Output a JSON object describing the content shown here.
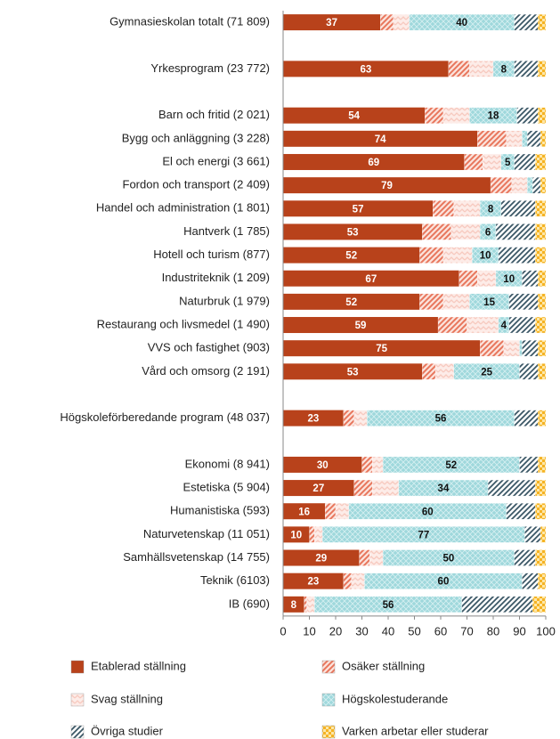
{
  "chart_data": {
    "type": "stacked-barh",
    "categories": [
      "Gymnasieskolan totalt (71 809)",
      null,
      "Yrkesprogram (23 772)",
      null,
      "Barn och fritid (2 021)",
      "Bygg och anläggning (3 228)",
      "El och energi (3 661)",
      "Fordon och transport (2 409)",
      "Handel och administration (1 801)",
      "Hantverk (1 785)",
      "Hotell och turism (877)",
      "Industriteknik (1 209)",
      "Naturbruk (1 979)",
      "Restaurang och livsmedel (1 490)",
      "VVS och fastighet (903)",
      "Vård och omsorg (2 191)",
      null,
      "Högskoleförberedande program (48 037)",
      null,
      "Ekonomi (8 941)",
      "Estetiska (5 904)",
      "Humanistiska (593)",
      "Naturvetenskap (11 051)",
      "Samhällsvetenskap (14 755)",
      "Teknik (6103)",
      "IB (690)"
    ],
    "series": [
      {
        "name": "Etablerad ställning",
        "color": "#b8421b",
        "pattern": "solid",
        "values": [
          37,
          null,
          63,
          null,
          54,
          74,
          69,
          79,
          57,
          53,
          52,
          67,
          52,
          59,
          75,
          53,
          null,
          23,
          null,
          30,
          27,
          16,
          10,
          29,
          23,
          8
        ],
        "value_labels": [
          "37",
          null,
          "63",
          null,
          "54",
          "74",
          "69",
          "79",
          "57",
          "53",
          "52",
          "67",
          "52",
          "59",
          "75",
          "53",
          null,
          "23",
          null,
          "30",
          "27",
          "16",
          "10",
          "29",
          "23",
          "8"
        ]
      },
      {
        "name": "Osäker ställning",
        "color": "#e8765c",
        "pattern": "hatch",
        "values": [
          5,
          null,
          8,
          null,
          7,
          11,
          7,
          8,
          8,
          11,
          9,
          7,
          9,
          11,
          9,
          5,
          null,
          4,
          null,
          4,
          7,
          4,
          2,
          4,
          3,
          1
        ]
      },
      {
        "name": "Svag ställning",
        "color": "#f7c9bf",
        "pattern": "zigzag",
        "values": [
          6,
          null,
          9,
          null,
          10,
          6,
          7,
          6,
          10,
          11,
          11,
          7,
          10,
          12,
          6,
          7,
          null,
          5,
          null,
          4,
          10,
          5,
          3,
          5,
          5,
          3
        ]
      },
      {
        "name": "Högskolestuderande",
        "color": "#9fd8dc",
        "pattern": "dots",
        "values": [
          40,
          null,
          8,
          null,
          18,
          2,
          5,
          2,
          8,
          6,
          10,
          10,
          15,
          4,
          1,
          25,
          null,
          56,
          null,
          52,
          34,
          60,
          77,
          50,
          60,
          56
        ],
        "value_labels": [
          "40",
          null,
          "8",
          null,
          "18",
          null,
          "5",
          null,
          "8",
          "6",
          "10",
          "10",
          "15",
          "4",
          null,
          "25",
          null,
          "56",
          null,
          "52",
          "34",
          "60",
          "77",
          "50",
          "60",
          "56"
        ]
      },
      {
        "name": "Övriga studier",
        "color": "#3b5766",
        "pattern": "stripes",
        "values": [
          9,
          null,
          9,
          null,
          8,
          5,
          8,
          3,
          13,
          15,
          14,
          6,
          11,
          10,
          6,
          7,
          null,
          9,
          null,
          7,
          18,
          11,
          6,
          8,
          6,
          27
        ]
      },
      {
        "name": "Varken arbetar eller studerar",
        "color": "#f5b324",
        "pattern": "checker",
        "values": [
          3,
          null,
          3,
          null,
          3,
          2,
          4,
          2,
          4,
          4,
          4,
          3,
          3,
          4,
          3,
          3,
          null,
          3,
          null,
          3,
          4,
          4,
          2,
          4,
          3,
          5
        ]
      }
    ],
    "xlim": [
      0,
      100
    ],
    "xticks": [
      0,
      10,
      20,
      30,
      40,
      50,
      60,
      70,
      80,
      90,
      100
    ],
    "legend": "bottom"
  }
}
